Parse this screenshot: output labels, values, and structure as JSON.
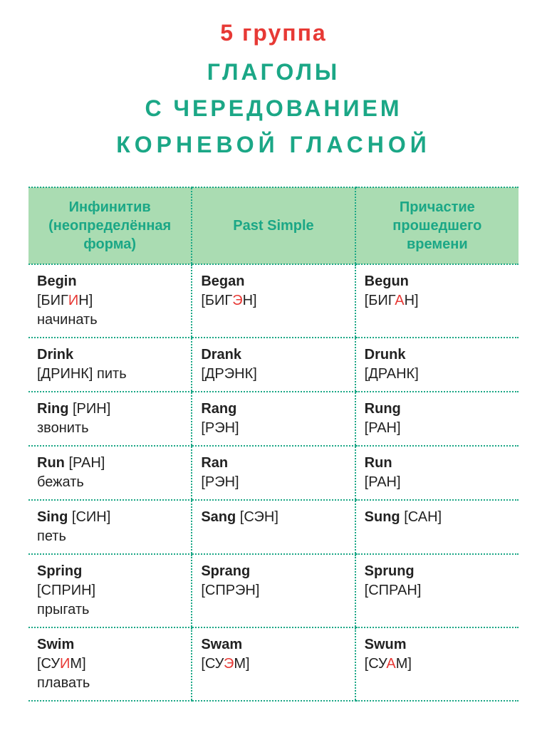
{
  "title": {
    "line1": "5  группа",
    "line2": "ГЛАГОЛЫ",
    "line3": "С   ЧЕРЕДОВАНИЕМ",
    "line4": "КОРНЕВОЙ   ГЛАСНОЙ"
  },
  "headers": {
    "col1": "Инфинитив (неопреде­лённая форма)",
    "col2": "Past Simple",
    "col3": "Причастие прошедшего времени"
  },
  "rows": [
    {
      "inf_word": "Begin",
      "inf_phon_pre": "[БИГ",
      "inf_phon_hl": "И",
      "inf_phon_post": "Н]",
      "inf_ru": "начинать",
      "ps_word": "Began",
      "ps_phon_pre": "[БИГ",
      "ps_phon_hl": "Э",
      "ps_phon_post": "Н]",
      "pp_word": "Begun",
      "pp_phon_pre": "[БИГ",
      "pp_phon_hl": "А",
      "pp_phon_post": "Н]"
    },
    {
      "inf_word": "Drink",
      "inf_phon_pre": "[ДРИНК] ",
      "inf_phon_hl": "",
      "inf_phon_post": "",
      "inf_ru": "пить",
      "ps_word": "Drank",
      "ps_phon_pre": "[ДРЭНК]",
      "ps_phon_hl": "",
      "ps_phon_post": "",
      "pp_word": "Drunk",
      "pp_phon_pre": "[ДРАНК]",
      "pp_phon_hl": "",
      "pp_phon_post": ""
    },
    {
      "inf_word": "Ring ",
      "inf_phon_pre": "[РИН]",
      "inf_phon_hl": "",
      "inf_phon_post": "",
      "inf_ru": "звонить",
      "ps_word": "Rang",
      "ps_phon_pre": "[РЭН]",
      "ps_phon_hl": "",
      "ps_phon_post": "",
      "pp_word": "Rung",
      "pp_phon_pre": "[РАН]",
      "pp_phon_hl": "",
      "pp_phon_post": ""
    },
    {
      "inf_word": "Run ",
      "inf_phon_pre": "[РАН]",
      "inf_phon_hl": "",
      "inf_phon_post": "",
      "inf_ru": "бежать",
      "ps_word": "Ran",
      "ps_phon_pre": "[РЭН]",
      "ps_phon_hl": "",
      "ps_phon_post": "",
      "pp_word": "Run",
      "pp_phon_pre": "[РАН]",
      "pp_phon_hl": "",
      "pp_phon_post": ""
    },
    {
      "inf_word": "Sing ",
      "inf_phon_pre": "[СИН]",
      "inf_phon_hl": "",
      "inf_phon_post": "",
      "inf_ru": "петь",
      "ps_word": "Sang ",
      "ps_phon_pre": "[СЭН]",
      "ps_phon_hl": "",
      "ps_phon_post": "",
      "pp_word": "Sung ",
      "pp_phon_pre": "[САН]",
      "pp_phon_hl": "",
      "pp_phon_post": ""
    },
    {
      "inf_word": "Spring",
      "inf_phon_pre": "[СПРИН]",
      "inf_phon_hl": "",
      "inf_phon_post": "",
      "inf_ru": "прыгать",
      "ps_word": "Sprang",
      "ps_phon_pre": "[СПРЭН]",
      "ps_phon_hl": "",
      "ps_phon_post": "",
      "pp_word": "Sprung",
      "pp_phon_pre": "[СПРАН]",
      "pp_phon_hl": "",
      "pp_phon_post": ""
    },
    {
      "inf_word": "Swim ",
      "inf_phon_pre": "[СУ",
      "inf_phon_hl": "И",
      "inf_phon_post": "М]",
      "inf_ru": "плавать",
      "ps_word": "Swam",
      "ps_phon_pre": "[СУ",
      "ps_phon_hl": "Э",
      "ps_phon_post": "М]",
      "pp_word": "Swum",
      "pp_phon_pre": "[СУ",
      "pp_phon_hl": "А",
      "pp_phon_post": "М]"
    }
  ],
  "style": {
    "accent_color": "#e73935",
    "green_text": "#1ba786",
    "header_bg": "#aadcb2",
    "body_bg": "#ffffff",
    "title_fontsize": 32,
    "cell_fontsize": 20
  }
}
